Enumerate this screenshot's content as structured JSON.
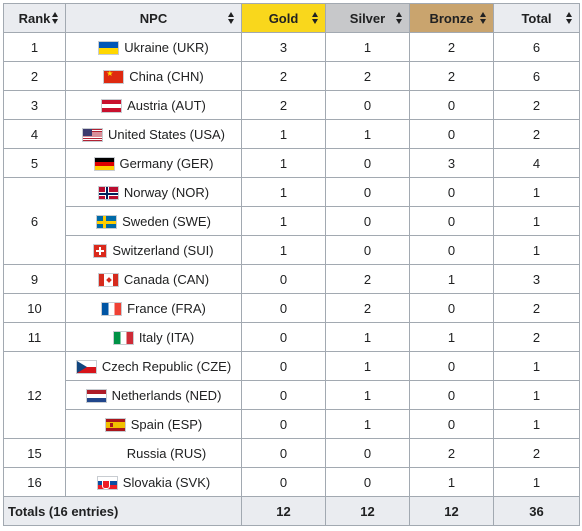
{
  "headers": {
    "rank": "Rank",
    "npc": "NPC",
    "gold": "Gold",
    "silver": "Silver",
    "bronze": "Bronze",
    "total": "Total"
  },
  "colors": {
    "gold": "#f9d71c",
    "silver": "#c7c8ca",
    "bronze": "#c9a46e",
    "header_bg": "#eaecf0",
    "border": "#a2a9b1"
  },
  "ranks": [
    "1",
    "2",
    "3",
    "4",
    "5",
    "6",
    "9",
    "10",
    "11",
    "12",
    "15",
    "16"
  ],
  "rows": [
    {
      "npc": "Ukraine (UKR)",
      "flag": "ukraine-flag-icon",
      "gold": "3",
      "silver": "1",
      "bronze": "2",
      "total": "6"
    },
    {
      "npc": "China (CHN)",
      "flag": "china-flag-icon",
      "gold": "2",
      "silver": "2",
      "bronze": "2",
      "total": "6"
    },
    {
      "npc": "Austria (AUT)",
      "flag": "austria-flag-icon",
      "gold": "2",
      "silver": "0",
      "bronze": "0",
      "total": "2"
    },
    {
      "npc": "United States (USA)",
      "flag": "usa-flag-icon",
      "gold": "1",
      "silver": "1",
      "bronze": "0",
      "total": "2"
    },
    {
      "npc": "Germany (GER)",
      "flag": "germany-flag-icon",
      "gold": "1",
      "silver": "0",
      "bronze": "3",
      "total": "4"
    },
    {
      "npc": "Norway (NOR)",
      "flag": "norway-flag-icon",
      "gold": "1",
      "silver": "0",
      "bronze": "0",
      "total": "1"
    },
    {
      "npc": "Sweden (SWE)",
      "flag": "sweden-flag-icon",
      "gold": "1",
      "silver": "0",
      "bronze": "0",
      "total": "1"
    },
    {
      "npc": "Switzerland (SUI)",
      "flag": "switzerland-flag-icon",
      "gold": "1",
      "silver": "0",
      "bronze": "0",
      "total": "1"
    },
    {
      "npc": "Canada (CAN)",
      "flag": "canada-flag-icon",
      "gold": "0",
      "silver": "2",
      "bronze": "1",
      "total": "3"
    },
    {
      "npc": "France (FRA)",
      "flag": "france-flag-icon",
      "gold": "0",
      "silver": "2",
      "bronze": "0",
      "total": "2"
    },
    {
      "npc": "Italy (ITA)",
      "flag": "italy-flag-icon",
      "gold": "0",
      "silver": "1",
      "bronze": "1",
      "total": "2"
    },
    {
      "npc": "Czech Republic (CZE)",
      "flag": "czech-flag-icon",
      "gold": "0",
      "silver": "1",
      "bronze": "0",
      "total": "1"
    },
    {
      "npc": "Netherlands (NED)",
      "flag": "netherlands-flag-icon",
      "gold": "0",
      "silver": "1",
      "bronze": "0",
      "total": "1"
    },
    {
      "npc": "Spain (ESP)",
      "flag": "spain-flag-icon",
      "gold": "0",
      "silver": "1",
      "bronze": "0",
      "total": "1"
    },
    {
      "npc": "Russia (RUS)",
      "flag": "",
      "gold": "0",
      "silver": "0",
      "bronze": "2",
      "total": "2"
    },
    {
      "npc": "Slovakia (SVK)",
      "flag": "slovakia-flag-icon",
      "gold": "0",
      "silver": "0",
      "bronze": "1",
      "total": "1"
    }
  ],
  "totals": {
    "label": "Totals (16 entries)",
    "gold": "12",
    "silver": "12",
    "bronze": "12",
    "total": "36"
  }
}
